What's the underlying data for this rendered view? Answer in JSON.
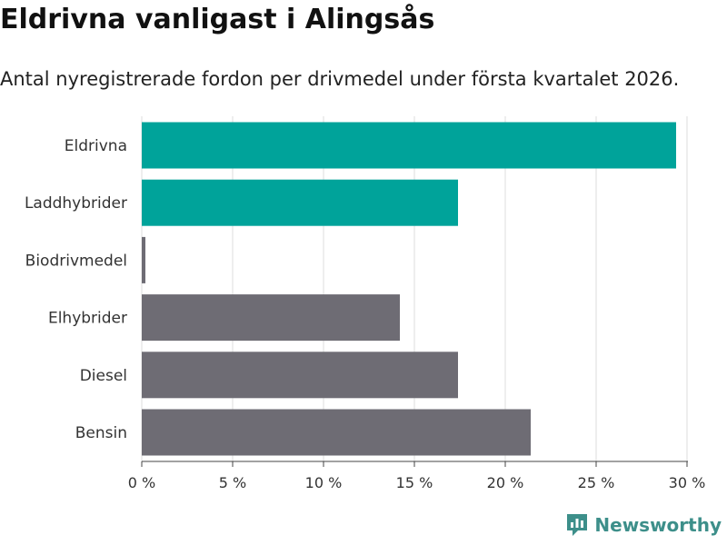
{
  "title": "Eldrivna vanligast i Alingsås",
  "subtitle": "Antal nyregistrerade fordon per drivmedel under första kvartalet 2026.",
  "brand": "Newsworthy",
  "colors": {
    "highlight": "#00a39a",
    "default": "#6e6c74",
    "grid": "#dddddd",
    "logo": "#3d8f8a"
  },
  "chart_data": {
    "type": "bar",
    "orientation": "horizontal",
    "categories": [
      "Eldrivna",
      "Laddhybrider",
      "Biodrivmedel",
      "Elhybrider",
      "Diesel",
      "Bensin"
    ],
    "values": [
      29.4,
      17.4,
      0.2,
      14.2,
      17.4,
      21.4
    ],
    "highlighted": [
      true,
      true,
      false,
      false,
      false,
      false
    ],
    "xlim": [
      0,
      30
    ],
    "xticks": [
      0,
      5,
      10,
      15,
      20,
      25,
      30
    ],
    "xtick_labels": [
      "0 %",
      "5 %",
      "10 %",
      "15 %",
      "20 %",
      "25 %",
      "30 %"
    ],
    "grid": true
  }
}
